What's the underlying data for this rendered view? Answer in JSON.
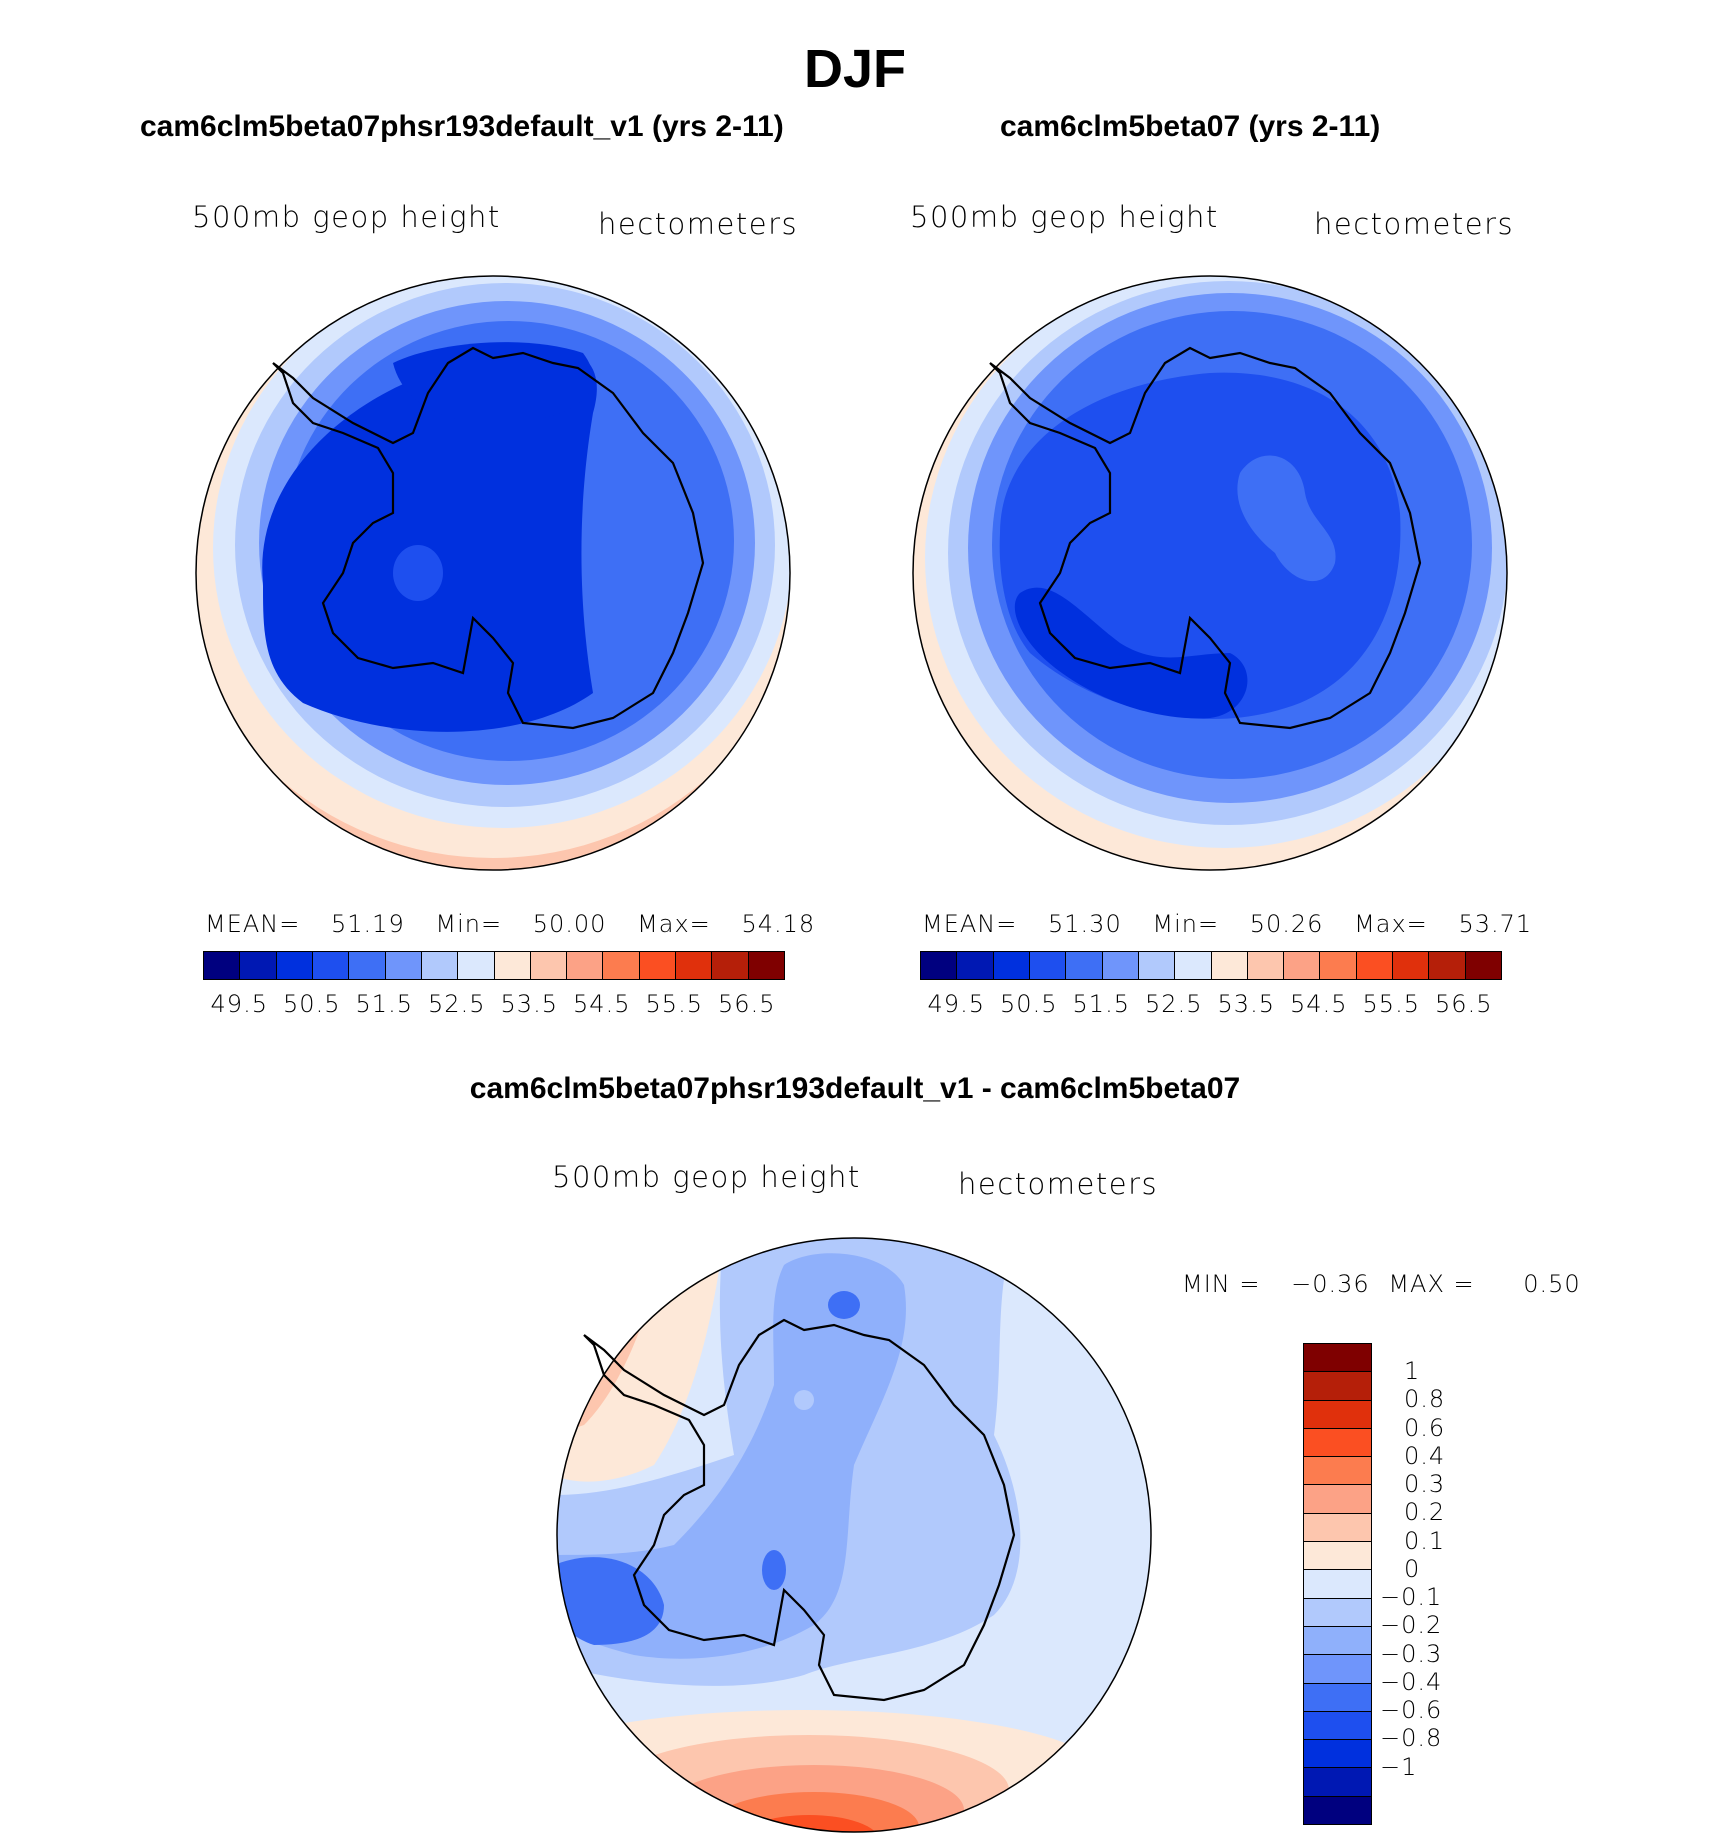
{
  "title": "DJF",
  "panels": [
    {
      "subtitle": "cam6clm5beta07phsr193default_v1 (yrs 2-11)",
      "field": "500mb geop height",
      "units": "hectometers",
      "stats": {
        "mean_label": "MEAN=",
        "mean": "51.19",
        "min_label": "Min=",
        "min": "50.00",
        "max_label": "Max=",
        "max": "54.18"
      }
    },
    {
      "subtitle": "cam6clm5beta07 (yrs 2-11)",
      "field": "500mb geop height",
      "units": "hectometers",
      "stats": {
        "mean_label": "MEAN=",
        "mean": "51.30",
        "min_label": "Min=",
        "min": "50.26",
        "max_label": "Max=",
        "max": "53.71"
      }
    }
  ],
  "abs_colorbar": {
    "colors": [
      "#00007f",
      "#0018b3",
      "#0030de",
      "#1e4fef",
      "#3e6ff5",
      "#6f95fb",
      "#b1c9fc",
      "#dbe8fd",
      "#fde8d8",
      "#fdc6ae",
      "#fca286",
      "#fc7c4f",
      "#fb4f22",
      "#e0300c",
      "#b51f09",
      "#7f0000"
    ],
    "ticks": [
      "49.5",
      "50.5",
      "51.5",
      "52.5",
      "53.5",
      "54.5",
      "55.5",
      "56.5"
    ]
  },
  "diff_panel": {
    "subtitle": "cam6clm5beta07phsr193default_v1 - cam6clm5beta07",
    "field": "500mb geop height",
    "units": "hectometers",
    "min_label": "MIN =",
    "min": "−0.36",
    "max_label": "MAX =",
    "max": "0.50"
  },
  "diff_colorbar": {
    "colors": [
      "#7f0000",
      "#b51f09",
      "#e0300c",
      "#fb4f22",
      "#fc7c4f",
      "#fca286",
      "#fdc6ae",
      "#fde8d8",
      "#dbe8fd",
      "#b1c9fc",
      "#8fb0fb",
      "#6f95fb",
      "#3e6ff5",
      "#1e4fef",
      "#0030de",
      "#0018b3",
      "#00007f"
    ],
    "ticks": [
      "1",
      "0.8",
      "0.6",
      "0.4",
      "0.3",
      "0.2",
      "0.1",
      "0",
      "−0.1",
      "−0.2",
      "−0.3",
      "−0.4",
      "−0.6",
      "−0.8",
      "−1"
    ]
  },
  "chart_data": [
    {
      "type": "heatmap",
      "title": "cam6clm5beta07phsr193default_v1 (yrs 2-11)",
      "variable": "500mb geop height",
      "units": "hectometers",
      "projection": "polar-south",
      "stats": {
        "mean": 51.19,
        "min": 50.0,
        "max": 54.18
      },
      "levels": [
        49.5,
        50.0,
        50.5,
        51.0,
        51.5,
        52.0,
        52.5,
        53.0,
        53.5,
        54.0,
        54.5,
        55.0,
        55.5,
        56.0,
        56.5
      ]
    },
    {
      "type": "heatmap",
      "title": "cam6clm5beta07 (yrs 2-11)",
      "variable": "500mb geop height",
      "units": "hectometers",
      "projection": "polar-south",
      "stats": {
        "mean": 51.3,
        "min": 50.26,
        "max": 53.71
      },
      "levels": [
        49.5,
        50.0,
        50.5,
        51.0,
        51.5,
        52.0,
        52.5,
        53.0,
        53.5,
        54.0,
        54.5,
        55.0,
        55.5,
        56.0,
        56.5
      ]
    },
    {
      "type": "heatmap",
      "title": "cam6clm5beta07phsr193default_v1 - cam6clm5beta07",
      "variable": "500mb geop height",
      "units": "hectometers",
      "projection": "polar-south",
      "stats": {
        "min": -0.36,
        "max": 0.5
      },
      "levels": [
        -1,
        -0.8,
        -0.6,
        -0.4,
        -0.3,
        -0.2,
        -0.1,
        0,
        0.1,
        0.2,
        0.3,
        0.4,
        0.6,
        0.8,
        1
      ]
    }
  ]
}
